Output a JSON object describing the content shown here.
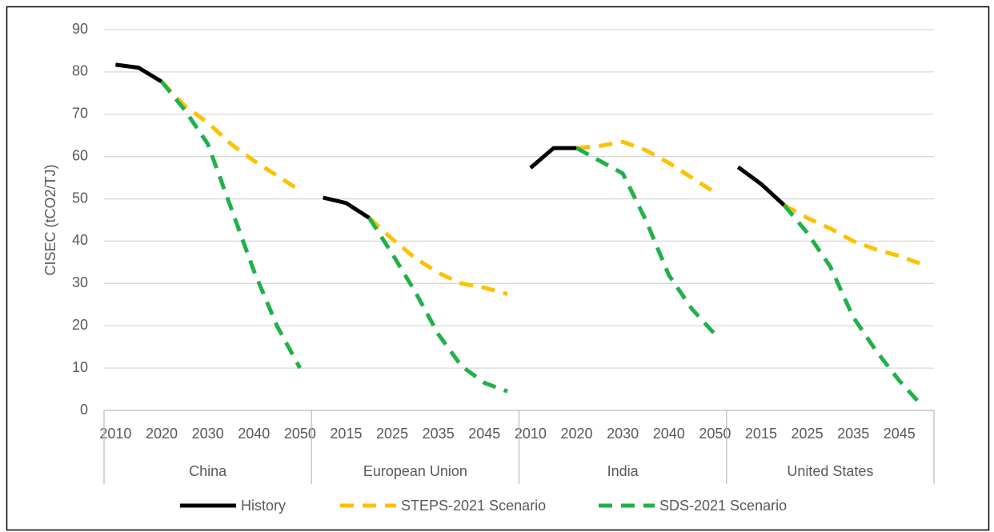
{
  "chart_data": {
    "type": "line",
    "ylabel": "CISEC (tCO2/TJ)",
    "groups": [
      "China",
      "European Union",
      "India",
      "United States"
    ],
    "categories": [
      "2010",
      null,
      "2020",
      null,
      "2030",
      null,
      "2040",
      null,
      "2050",
      null,
      "2015",
      null,
      "2025",
      null,
      "2035",
      null,
      "2045",
      null,
      "2010",
      null,
      "2020",
      null,
      "2030",
      null,
      "2040",
      null,
      "2050",
      null,
      "2015",
      null,
      "2025",
      null,
      "2035",
      null,
      "2045",
      null
    ],
    "series": [
      {
        "name": "History",
        "color": "#000000",
        "style": "solid",
        "values": [
          81.7,
          81,
          77.7,
          null,
          null,
          null,
          null,
          null,
          null,
          50.3,
          49,
          45.5,
          null,
          null,
          null,
          null,
          null,
          null,
          57.3,
          62,
          62,
          null,
          null,
          null,
          null,
          null,
          null,
          57.5,
          53.5,
          48.5,
          null,
          null,
          null,
          null,
          null,
          null
        ]
      },
      {
        "name": "STEPS-2021 Scenario",
        "color": "#ffc000",
        "style": "dashed",
        "values": [
          null,
          null,
          77.7,
          72,
          68,
          63,
          59,
          55.5,
          52,
          null,
          null,
          45.5,
          40.5,
          36,
          32.5,
          30,
          29,
          27.5,
          null,
          null,
          62,
          62.5,
          63.5,
          61.5,
          58.5,
          55,
          51.5,
          null,
          null,
          48.5,
          45.5,
          43,
          40,
          38,
          36.5,
          34.5
        ]
      },
      {
        "name": "SDS-2021 Scenario",
        "color": "#1fb14a",
        "style": "dashed",
        "values": [
          null,
          null,
          77.7,
          71,
          63,
          48,
          33,
          20,
          10,
          null,
          null,
          45.5,
          37,
          28,
          18,
          10.5,
          6.5,
          4.5,
          null,
          null,
          62,
          59,
          56,
          45,
          32,
          24,
          18,
          null,
          null,
          48.5,
          42,
          34,
          22,
          14,
          7,
          1
        ]
      }
    ],
    "ylim": [
      0,
      90
    ],
    "yticks": [
      0,
      10,
      20,
      30,
      40,
      50,
      60,
      70,
      80,
      90
    ],
    "grid": true,
    "legend": "bottom"
  }
}
